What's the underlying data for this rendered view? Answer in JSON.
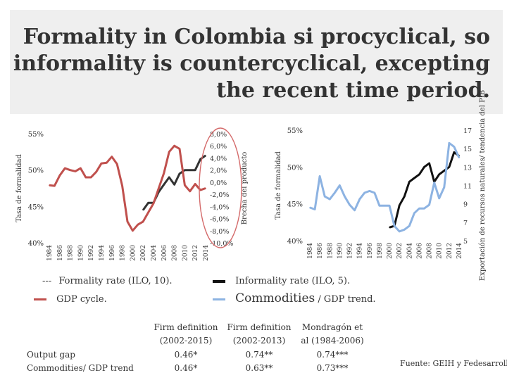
{
  "title": "Formality in Colombia si procyclical, so informality is countercyclical, excepting the recent time period.",
  "chart_data": [
    {
      "type": "line",
      "x": [
        1984,
        1985,
        1986,
        1987,
        1988,
        1989,
        1990,
        1991,
        1992,
        1993,
        1994,
        1995,
        1996,
        1997,
        1998,
        1999,
        2000,
        2001,
        2002,
        2003,
        2004,
        2005,
        2006,
        2007,
        2008,
        2009,
        2010,
        2011,
        2012,
        2013,
        2014
      ],
      "x_tick_labels": [
        "1984",
        "1986",
        "1988",
        "1990",
        "1992",
        "1994",
        "1996",
        "1998",
        "2000",
        "2002",
        "2004",
        "2006",
        "2008",
        "2010",
        "2012",
        "2014"
      ],
      "y_left_label": "Tasa de formalidad",
      "y_left_ticks": [
        "40%",
        "45%",
        "50%",
        "55%"
      ],
      "ylim_left": [
        40,
        55
      ],
      "y_right_label": "Brecha del producto",
      "y_right_ticks": [
        "8,0%",
        "6,0%",
        "4,0%",
        "2,0%",
        "0,0%",
        "-2,0%",
        "-4,0%",
        "-6,0%",
        "-8,0%",
        "-10,0%"
      ],
      "ylim_right": [
        -10,
        8
      ],
      "series": [
        {
          "name": "Formality rate (ILO, 10).",
          "axis": "left",
          "color": "#333333",
          "values": [
            null,
            null,
            null,
            null,
            null,
            null,
            null,
            null,
            null,
            null,
            null,
            null,
            null,
            null,
            null,
            null,
            null,
            null,
            44.5,
            45.5,
            45.5,
            47,
            48,
            49,
            48,
            49.5,
            50,
            50,
            50,
            51.5,
            52
          ]
        },
        {
          "name": "GDP cycle.",
          "axis": "right",
          "color": "#c0504d",
          "values": [
            -0.5,
            -0.6,
            1.1,
            2.3,
            2.0,
            1.8,
            2.3,
            0.8,
            0.8,
            1.7,
            3.1,
            3.2,
            4.2,
            3.0,
            -0.6,
            -6.5,
            -8.0,
            -7.0,
            -6.5,
            -5.0,
            -3.5,
            -1.0,
            1.5,
            5.0,
            6.0,
            5.5,
            -0.5,
            -1.5,
            -0.3,
            -1.3,
            -1.0
          ]
        }
      ]
    },
    {
      "type": "line",
      "x": [
        1984,
        1985,
        1986,
        1987,
        1988,
        1989,
        1990,
        1991,
        1992,
        1993,
        1994,
        1995,
        1996,
        1997,
        1998,
        1999,
        2000,
        2001,
        2002,
        2003,
        2004,
        2005,
        2006,
        2007,
        2008,
        2009,
        2010,
        2011,
        2012,
        2013,
        2014
      ],
      "x_tick_labels": [
        "1984",
        "1986",
        "1988",
        "1990",
        "1992",
        "1994",
        "1996",
        "1998",
        "2000",
        "2002",
        "2004",
        "2006",
        "2008",
        "2010",
        "2012",
        "2014"
      ],
      "y_left_label": "Tasa de formalidad",
      "y_left_ticks": [
        "40%",
        "45%",
        "50%",
        "55%"
      ],
      "ylim_left": [
        40,
        55
      ],
      "y_right_label": "Exportación de recursos naturales/ tendencia del PIB",
      "y_right_ticks": [
        "17",
        "15",
        "13",
        "11",
        "9",
        "7",
        "5"
      ],
      "ylim_right": [
        5,
        17
      ],
      "series": [
        {
          "name": "Informality rate (ILO, 5).",
          "axis": "left",
          "color": "#111111",
          "values": [
            null,
            null,
            null,
            null,
            null,
            null,
            null,
            null,
            null,
            null,
            null,
            null,
            null,
            null,
            null,
            null,
            41.8,
            42.0,
            44.8,
            46.0,
            48.0,
            48.5,
            49.0,
            50.0,
            50.5,
            48.0,
            49.0,
            49.5,
            50.0,
            52.0,
            51.5
          ]
        },
        {
          "name": "Commodities / GDP trend.",
          "axis": "right",
          "color": "#8db3e2",
          "values": [
            8.6,
            8.4,
            12.0,
            9.8,
            9.5,
            10.2,
            11.0,
            9.8,
            8.9,
            8.3,
            9.5,
            10.2,
            10.4,
            10.2,
            8.8,
            8.8,
            8.8,
            6.6,
            6.0,
            6.2,
            6.6,
            8.0,
            8.5,
            8.5,
            8.9,
            11.3,
            9.6,
            10.8,
            15.6,
            15.2,
            14.0
          ]
        }
      ]
    }
  ],
  "legend": {
    "formality_marker": "---",
    "formality": "Formality rate (ILO, 10).",
    "gdp": "GDP cycle.",
    "informality": "Informality rate (ILO, 5).",
    "commodities_word": "Commodities",
    "commodities_rest": " / GDP trend."
  },
  "table": {
    "headers": [
      "Firm definition (2002-2015)",
      "Firm definition (2002-2013)",
      "Mondragón et al (1984-2006)"
    ],
    "rows": [
      {
        "label": "Output gap",
        "values": [
          "0.46*",
          "0.74**",
          "0.74***"
        ]
      },
      {
        "label": "Commodities/ GDP trend",
        "values": [
          "0.46*",
          "0.63**",
          "0.73***"
        ]
      }
    ]
  },
  "source": "Fuente: GEIH y Fedesarrollo"
}
